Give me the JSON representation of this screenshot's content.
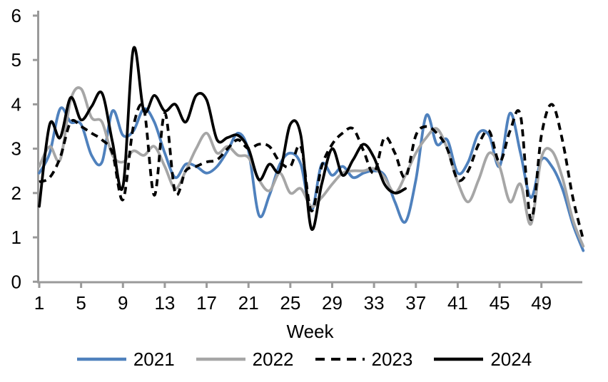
{
  "chart_data": {
    "type": "line",
    "title": "",
    "xlabel": "Week",
    "ylabel": "",
    "x_range": [
      1,
      53
    ],
    "x_tick_labels": [
      1,
      5,
      9,
      13,
      17,
      21,
      25,
      29,
      33,
      37,
      41,
      45,
      49
    ],
    "ylim": [
      0,
      6
    ],
    "y_tick_labels": [
      0,
      1,
      2,
      3,
      4,
      5,
      6
    ],
    "grid": "off",
    "legend_position": "bottom",
    "axis_color": "#9a9a9a",
    "series": [
      {
        "name": "2021",
        "color": "#4f81bd",
        "style": "solid",
        "start_week": 1,
        "values": [
          2.45,
          2.9,
          3.9,
          3.6,
          3.55,
          2.85,
          2.7,
          3.85,
          3.3,
          3.4,
          3.9,
          3.6,
          2.9,
          2.35,
          2.65,
          2.6,
          2.45,
          2.6,
          2.95,
          3.35,
          2.95,
          1.5,
          1.95,
          2.65,
          2.9,
          2.65,
          1.6,
          2.65,
          2.4,
          2.6,
          2.35,
          2.45,
          2.5,
          2.4,
          1.8,
          1.35,
          2.3,
          3.75,
          3.1,
          3.2,
          2.45,
          2.7,
          3.35,
          3.3,
          2.6,
          3.8,
          2.9,
          1.9,
          2.75,
          2.6,
          2.1,
          1.3,
          0.7
        ]
      },
      {
        "name": "2022",
        "color": "#a6a6a6",
        "style": "solid",
        "start_week": 1,
        "values": [
          2.6,
          3.05,
          2.75,
          4.1,
          4.35,
          3.7,
          3.6,
          2.85,
          2.7,
          2.95,
          2.85,
          3.05,
          2.6,
          2.1,
          2.5,
          3.0,
          3.35,
          2.9,
          3.05,
          2.85,
          2.8,
          2.3,
          2.05,
          2.45,
          2.0,
          2.1,
          1.7,
          1.9,
          2.2,
          2.45,
          2.5,
          2.5,
          2.55,
          2.35,
          2.0,
          2.4,
          2.9,
          3.25,
          3.45,
          3.0,
          2.25,
          1.8,
          2.3,
          2.9,
          2.6,
          1.8,
          2.2,
          1.3,
          2.8,
          2.95,
          2.35,
          1.4,
          0.8
        ]
      },
      {
        "name": "2023",
        "color": "#000000",
        "style": "dashed",
        "start_week": 1,
        "values": [
          2.25,
          2.35,
          2.8,
          3.6,
          3.5,
          3.35,
          3.2,
          2.9,
          1.85,
          3.5,
          3.9,
          1.95,
          3.8,
          2.0,
          2.5,
          2.6,
          2.7,
          2.75,
          3.0,
          3.2,
          3.0,
          3.1,
          3.05,
          2.7,
          2.6,
          3.05,
          1.6,
          2.6,
          3.1,
          3.35,
          3.45,
          2.95,
          2.45,
          3.25,
          2.9,
          2.35,
          3.3,
          3.5,
          3.35,
          3.0,
          2.3,
          2.5,
          3.1,
          3.4,
          2.7,
          3.4,
          3.75,
          1.4,
          3.3,
          4.0,
          3.2,
          1.9,
          0.95
        ]
      },
      {
        "name": "2024",
        "color": "#000000",
        "style": "solid",
        "start_week": 1,
        "values": [
          1.7,
          3.55,
          3.25,
          4.15,
          3.65,
          3.95,
          4.25,
          3.15,
          2.15,
          5.25,
          3.85,
          4.2,
          3.85,
          4.0,
          3.6,
          4.2,
          4.1,
          3.2,
          3.25,
          3.3,
          3.0,
          2.3,
          2.65,
          2.5,
          3.55,
          3.3,
          1.2,
          2.2,
          3.0,
          2.4,
          2.75,
          3.1,
          2.8,
          2.2,
          2.0,
          2.1
        ]
      }
    ]
  }
}
